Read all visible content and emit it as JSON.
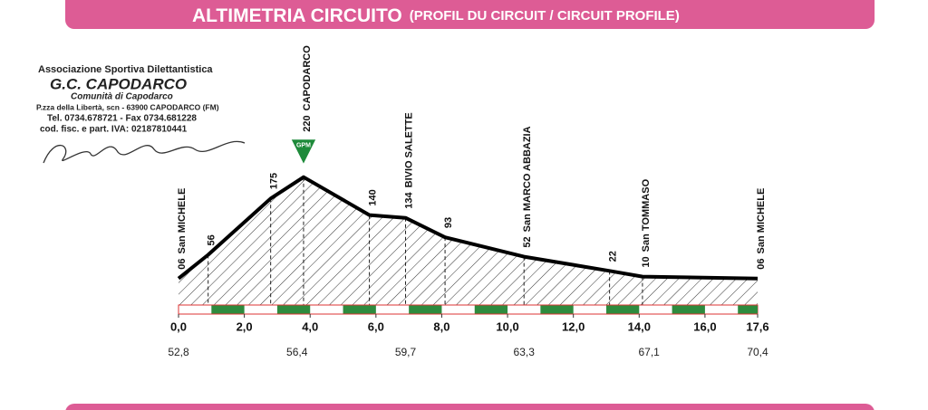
{
  "header": {
    "title": "ALTIMETRIA CIRCUITO",
    "subtitle": "(PROFIL DU CIRCUIT / CIRCUIT PROFILE)"
  },
  "stamp": {
    "lines": [
      "Associazione Sportiva Dilettantistica",
      "G.C. CAPODARCO",
      "Comunità di Capodarco",
      "P.zza della Libertà, scn - 63900 CAPODARCO (FM)",
      "Tel. 0734.678721 - Fax 0734.681228",
      "cod. fisc. e part. IVA: 02187810441"
    ]
  },
  "chart_data": {
    "type": "area",
    "x": [
      0,
      0.9,
      2.8,
      3.8,
      5.8,
      6.9,
      8.1,
      10.5,
      13.1,
      14.1,
      17.6
    ],
    "values": [
      6,
      56,
      175,
      220,
      140,
      134,
      93,
      52,
      22,
      10,
      6
    ],
    "value_labels": [
      "06",
      "56",
      "175",
      "220",
      "140",
      "134",
      "93",
      "52",
      "22",
      "10",
      "06"
    ],
    "place_names": [
      "San MICHELE",
      null,
      null,
      "CAPODARCO",
      null,
      "BIVIO SALETTE",
      null,
      "San MARCO ABBAZIA",
      null,
      "San TOMMASO",
      "San MICHELE"
    ],
    "marker": {
      "index": 3,
      "label": "GPM",
      "color": "#1e8a3a"
    },
    "line_color": "#000000",
    "strip_color": "#2e8b3e",
    "xlim": [
      0,
      17.6
    ],
    "ylim": [
      -50,
      250
    ],
    "xticks": [
      {
        "value": 0,
        "label": "0,0"
      },
      {
        "value": 2,
        "label": "2,0"
      },
      {
        "value": 4,
        "label": "4,0"
      },
      {
        "value": 6,
        "label": "6,0"
      },
      {
        "value": 8,
        "label": "8,0"
      },
      {
        "value": 10,
        "label": "10,0"
      },
      {
        "value": 12,
        "label": "12,0"
      },
      {
        "value": 14,
        "label": "14,0"
      },
      {
        "value": 16,
        "label": "16,0"
      },
      {
        "value": 17.6,
        "label": "17,6"
      }
    ],
    "race_km": [
      {
        "x": 0,
        "value": 52.8,
        "label": "52,8"
      },
      {
        "x": 3.6,
        "value": 56.4,
        "label": "56,4"
      },
      {
        "x": 6.9,
        "value": 59.7,
        "label": "59,7"
      },
      {
        "x": 10.5,
        "value": 63.3,
        "label": "63,3"
      },
      {
        "x": 14.3,
        "value": 67.1,
        "label": "67,1"
      },
      {
        "x": 17.6,
        "value": 70.4,
        "label": "70,4"
      }
    ]
  }
}
